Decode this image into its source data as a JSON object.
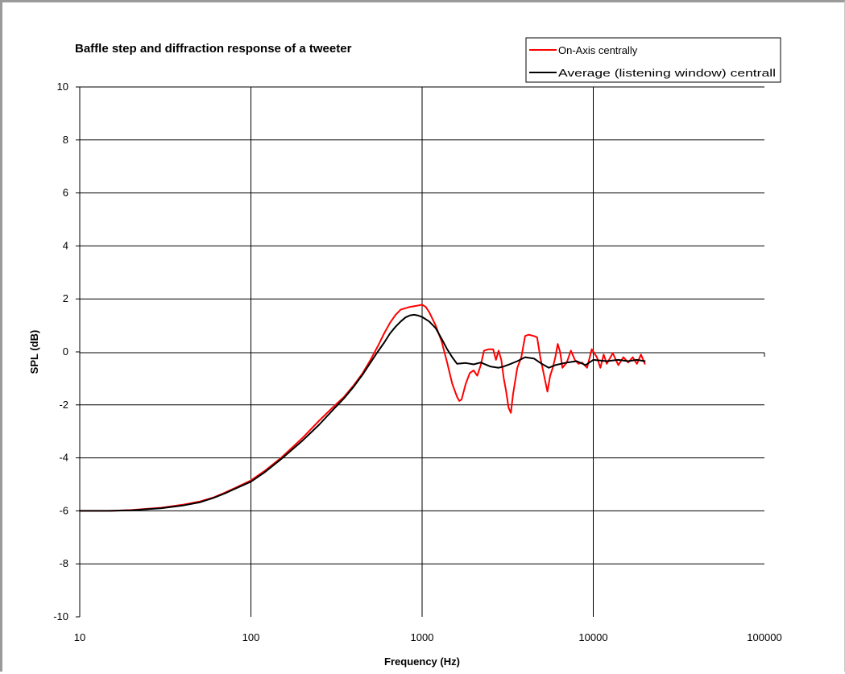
{
  "chart_data": {
    "type": "line",
    "title": "Baffle step and diffraction response of a tweeter",
    "xlabel": "Frequency (Hz)",
    "ylabel": "SPL (dB)",
    "xscale": "log",
    "xlim": [
      10,
      100000
    ],
    "ylim": [
      -10,
      10
    ],
    "xticks": [
      "10",
      "100",
      "1000",
      "10000",
      "100000"
    ],
    "yticks": [
      "-10",
      "-8",
      "-6",
      "-4",
      "-2",
      "0",
      "2",
      "4",
      "6",
      "8",
      "10"
    ],
    "grid": true,
    "legend_position": "top-right",
    "colors": {
      "on_axis": "#ff0000",
      "average": "#000000"
    },
    "series": [
      {
        "name": "On-Axis centrally",
        "color": "#ff0000",
        "points": [
          [
            10,
            -6.0
          ],
          [
            15,
            -6.0
          ],
          [
            20,
            -5.97
          ],
          [
            30,
            -5.88
          ],
          [
            40,
            -5.77
          ],
          [
            50,
            -5.65
          ],
          [
            60,
            -5.5
          ],
          [
            70,
            -5.32
          ],
          [
            80,
            -5.15
          ],
          [
            100,
            -4.85
          ],
          [
            120,
            -4.5
          ],
          [
            150,
            -4.0
          ],
          [
            200,
            -3.25
          ],
          [
            250,
            -2.6
          ],
          [
            300,
            -2.1
          ],
          [
            350,
            -1.7
          ],
          [
            400,
            -1.25
          ],
          [
            450,
            -0.8
          ],
          [
            500,
            -0.3
          ],
          [
            550,
            0.2
          ],
          [
            600,
            0.7
          ],
          [
            650,
            1.1
          ],
          [
            700,
            1.4
          ],
          [
            750,
            1.6
          ],
          [
            850,
            1.7
          ],
          [
            950,
            1.75
          ],
          [
            1000,
            1.78
          ],
          [
            1050,
            1.7
          ],
          [
            1100,
            1.5
          ],
          [
            1200,
            1.0
          ],
          [
            1300,
            0.4
          ],
          [
            1400,
            -0.4
          ],
          [
            1500,
            -1.2
          ],
          [
            1600,
            -1.7
          ],
          [
            1650,
            -1.85
          ],
          [
            1700,
            -1.8
          ],
          [
            1800,
            -1.2
          ],
          [
            1900,
            -0.8
          ],
          [
            2000,
            -0.7
          ],
          [
            2100,
            -0.9
          ],
          [
            2200,
            -0.5
          ],
          [
            2300,
            0.05
          ],
          [
            2450,
            0.1
          ],
          [
            2600,
            0.1
          ],
          [
            2700,
            -0.3
          ],
          [
            2800,
            0.05
          ],
          [
            2900,
            -0.3
          ],
          [
            3000,
            -1.0
          ],
          [
            3100,
            -1.5
          ],
          [
            3200,
            -2.1
          ],
          [
            3300,
            -2.3
          ],
          [
            3400,
            -1.6
          ],
          [
            3600,
            -0.6
          ],
          [
            3800,
            -0.2
          ],
          [
            4000,
            0.6
          ],
          [
            4200,
            0.65
          ],
          [
            4500,
            0.6
          ],
          [
            4700,
            0.55
          ],
          [
            4900,
            -0.2
          ],
          [
            5200,
            -1.0
          ],
          [
            5400,
            -1.5
          ],
          [
            5600,
            -0.9
          ],
          [
            5800,
            -0.6
          ],
          [
            6000,
            -0.2
          ],
          [
            6200,
            0.3
          ],
          [
            6400,
            0.0
          ],
          [
            6600,
            -0.6
          ],
          [
            7000,
            -0.4
          ],
          [
            7400,
            0.05
          ],
          [
            7800,
            -0.3
          ],
          [
            8200,
            -0.45
          ],
          [
            8600,
            -0.4
          ],
          [
            9200,
            -0.6
          ],
          [
            9800,
            0.1
          ],
          [
            10500,
            -0.2
          ],
          [
            11000,
            -0.6
          ],
          [
            11500,
            -0.1
          ],
          [
            12000,
            -0.45
          ],
          [
            13000,
            -0.05
          ],
          [
            14000,
            -0.5
          ],
          [
            15000,
            -0.2
          ],
          [
            16000,
            -0.4
          ],
          [
            17000,
            -0.2
          ],
          [
            18000,
            -0.45
          ],
          [
            19000,
            -0.1
          ],
          [
            20000,
            -0.45
          ]
        ]
      },
      {
        "name": "Average (listening window) centrall",
        "color": "#000000",
        "points": [
          [
            10,
            -6.0
          ],
          [
            15,
            -6.0
          ],
          [
            20,
            -5.98
          ],
          [
            30,
            -5.9
          ],
          [
            40,
            -5.8
          ],
          [
            50,
            -5.68
          ],
          [
            60,
            -5.52
          ],
          [
            70,
            -5.35
          ],
          [
            80,
            -5.18
          ],
          [
            100,
            -4.9
          ],
          [
            120,
            -4.55
          ],
          [
            150,
            -4.05
          ],
          [
            200,
            -3.35
          ],
          [
            250,
            -2.75
          ],
          [
            300,
            -2.2
          ],
          [
            350,
            -1.75
          ],
          [
            400,
            -1.3
          ],
          [
            450,
            -0.85
          ],
          [
            500,
            -0.4
          ],
          [
            550,
            0.0
          ],
          [
            600,
            0.35
          ],
          [
            650,
            0.7
          ],
          [
            700,
            0.95
          ],
          [
            750,
            1.15
          ],
          [
            800,
            1.3
          ],
          [
            850,
            1.38
          ],
          [
            900,
            1.4
          ],
          [
            950,
            1.37
          ],
          [
            1000,
            1.32
          ],
          [
            1100,
            1.15
          ],
          [
            1200,
            0.9
          ],
          [
            1300,
            0.5
          ],
          [
            1400,
            0.1
          ],
          [
            1500,
            -0.2
          ],
          [
            1600,
            -0.45
          ],
          [
            1800,
            -0.42
          ],
          [
            2000,
            -0.47
          ],
          [
            2200,
            -0.4
          ],
          [
            2500,
            -0.55
          ],
          [
            2800,
            -0.6
          ],
          [
            3000,
            -0.55
          ],
          [
            3300,
            -0.45
          ],
          [
            3600,
            -0.35
          ],
          [
            4000,
            -0.2
          ],
          [
            4500,
            -0.25
          ],
          [
            5000,
            -0.45
          ],
          [
            5500,
            -0.6
          ],
          [
            6000,
            -0.5
          ],
          [
            7000,
            -0.4
          ],
          [
            8000,
            -0.35
          ],
          [
            9000,
            -0.5
          ],
          [
            10000,
            -0.3
          ],
          [
            12000,
            -0.35
          ],
          [
            14000,
            -0.3
          ],
          [
            16000,
            -0.35
          ],
          [
            18000,
            -0.3
          ],
          [
            20000,
            -0.35
          ]
        ]
      }
    ]
  }
}
